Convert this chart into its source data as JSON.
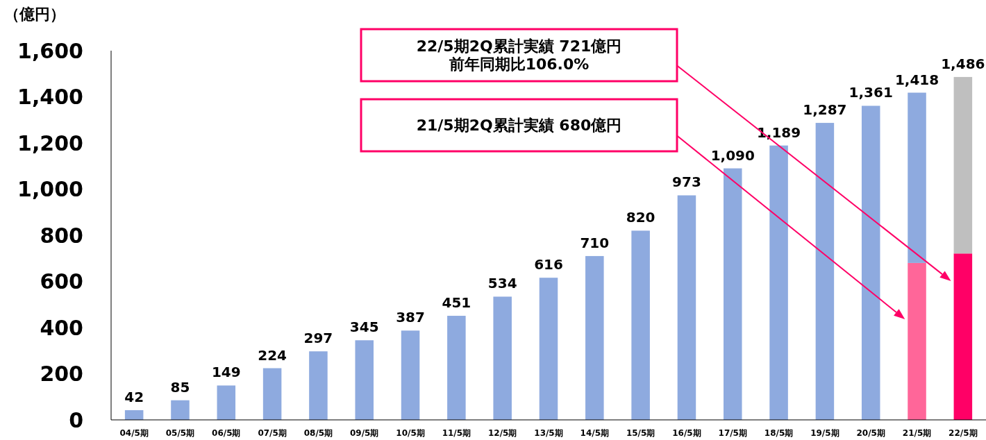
{
  "chart_data": {
    "type": "bar",
    "ylabel": "（億円）",
    "stacked": true,
    "categories": [
      "04/5期",
      "05/5期",
      "06/5期",
      "07/5期",
      "08/5期",
      "09/5期",
      "10/5期",
      "11/5期",
      "12/5期",
      "13/5期",
      "14/5期",
      "15/5期",
      "16/5期",
      "17/5期",
      "18/5期",
      "19/5期",
      "20/5期",
      "21/5期",
      "22/5期"
    ],
    "series": [
      {
        "values": [
          42,
          85,
          149,
          224,
          297,
          345,
          387,
          451,
          534,
          616,
          710,
          820,
          973,
          1090,
          1189,
          1287,
          1361,
          680,
          721
        ],
        "colors": [
          "#8eaadf",
          "#8eaadf",
          "#8eaadf",
          "#8eaadf",
          "#8eaadf",
          "#8eaadf",
          "#8eaadf",
          "#8eaadf",
          "#8eaadf",
          "#8eaadf",
          "#8eaadf",
          "#8eaadf",
          "#8eaadf",
          "#8eaadf",
          "#8eaadf",
          "#8eaadf",
          "#8eaadf",
          "#ff6699",
          "#ff0066"
        ]
      },
      {
        "values": [
          null,
          null,
          null,
          null,
          null,
          null,
          null,
          null,
          null,
          null,
          null,
          null,
          null,
          null,
          null,
          null,
          null,
          738,
          765
        ],
        "colors": [
          null,
          null,
          null,
          null,
          null,
          null,
          null,
          null,
          null,
          null,
          null,
          null,
          null,
          null,
          null,
          null,
          null,
          "#8eaadf",
          "#bfbfbf"
        ]
      }
    ],
    "totals": [
      "42",
      "85",
      "149",
      "224",
      "297",
      "345",
      "387",
      "451",
      "534",
      "616",
      "710",
      "820",
      "973",
      "1,090",
      "1,189",
      "1,287",
      "1,361",
      "1,418",
      "1,486"
    ],
    "ylim": [
      0,
      1600
    ],
    "yticks": [
      {
        "value": 0,
        "label": "0"
      },
      {
        "value": 200,
        "label": "200"
      },
      {
        "value": 400,
        "label": "400"
      },
      {
        "value": 600,
        "label": "600"
      },
      {
        "value": 800,
        "label": "800"
      },
      {
        "value": 1000,
        "label": "1,000"
      },
      {
        "value": 1200,
        "label": "1,200"
      },
      {
        "value": 1400,
        "label": "1,400"
      },
      {
        "value": 1600,
        "label": "1,600"
      }
    ],
    "annotations": [
      "22/5期2Q累計実績 721億円",
      "前年同期比106.0%",
      "21/5期2Q累計実績 680億円"
    ]
  }
}
